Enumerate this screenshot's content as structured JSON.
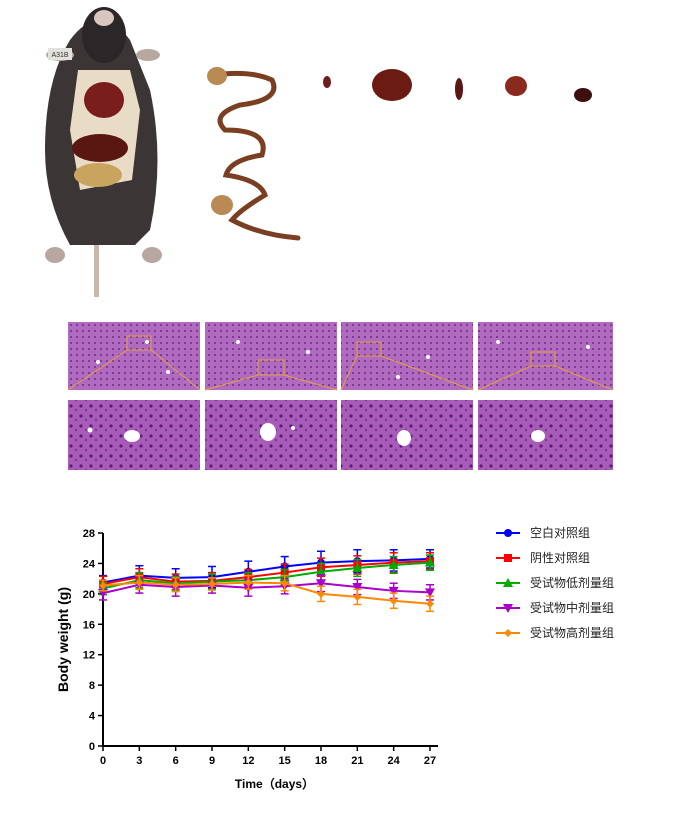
{
  "figure": {
    "mouse_tag": "A31B",
    "organ_panel_label": "",
    "histology_panel_label": ""
  },
  "chart_data": {
    "type": "line",
    "xlabel": "Time（days）",
    "ylabel": "Body weight (g)",
    "x": [
      0,
      3,
      6,
      9,
      12,
      15,
      18,
      21,
      24,
      27
    ],
    "xlim": [
      0,
      27
    ],
    "ylim": [
      0,
      28
    ],
    "xticks": [
      0,
      3,
      6,
      9,
      12,
      15,
      18,
      21,
      24,
      27
    ],
    "yticks": [
      0,
      4,
      8,
      12,
      16,
      20,
      24,
      28
    ],
    "legend_position": "right",
    "grid": false,
    "series": [
      {
        "name": "空白对照组",
        "color": "#0000ff",
        "marker": "circle",
        "values": [
          21.5,
          22.4,
          22.1,
          22.2,
          22.9,
          23.6,
          24.1,
          24.3,
          24.4,
          24.6
        ],
        "errors": [
          0.9,
          1.3,
          1.2,
          1.4,
          1.4,
          1.3,
          1.5,
          1.5,
          1.4,
          1.2
        ]
      },
      {
        "name": "阴性对照组",
        "color": "#ff0000",
        "marker": "square",
        "values": [
          21.3,
          22.2,
          21.6,
          21.7,
          22.2,
          22.8,
          23.5,
          23.8,
          24.1,
          24.3
        ],
        "errors": [
          1.0,
          1.1,
          1.0,
          1.1,
          1.0,
          1.1,
          1.2,
          1.2,
          1.3,
          1.1
        ]
      },
      {
        "name": "受试物低剂量组",
        "color": "#00aa00",
        "marker": "triangle-up",
        "values": [
          20.7,
          21.8,
          21.4,
          21.6,
          21.8,
          22.2,
          22.9,
          23.4,
          23.8,
          24.1
        ],
        "errors": [
          0.8,
          1.0,
          0.9,
          1.0,
          1.0,
          1.0,
          1.1,
          1.1,
          1.1,
          1.0
        ]
      },
      {
        "name": "受试物中剂量组",
        "color": "#aa00cc",
        "marker": "triangle-down",
        "values": [
          20.1,
          21.2,
          20.9,
          21.1,
          20.8,
          21.0,
          21.4,
          20.9,
          20.4,
          20.2
        ],
        "errors": [
          0.9,
          1.1,
          1.2,
          1.0,
          1.1,
          1.0,
          1.1,
          1.0,
          1.0,
          1.0
        ]
      },
      {
        "name": "受试物高剂量组",
        "color": "#ff8800",
        "marker": "diamond",
        "values": [
          21.1,
          21.5,
          21.2,
          21.3,
          21.5,
          21.4,
          20.0,
          19.6,
          19.1,
          18.7
        ],
        "errors": [
          0.7,
          0.9,
          0.9,
          0.8,
          0.9,
          1.0,
          1.0,
          1.0,
          1.0,
          1.0
        ]
      }
    ]
  }
}
